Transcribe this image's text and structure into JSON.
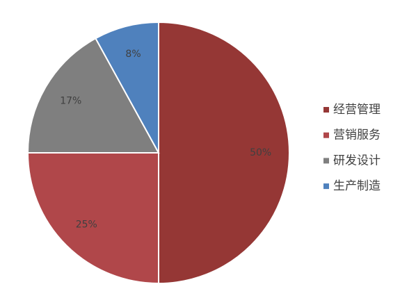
{
  "chart_data": {
    "type": "pie",
    "categories": [
      "经营管理",
      "营销服务",
      "研发设计",
      "生产制造"
    ],
    "values": [
      50,
      25,
      17,
      8
    ],
    "value_labels": [
      "50%",
      "25%",
      "17%",
      "8%"
    ],
    "colors": [
      "#953735",
      "#b0474a",
      "#7f7f7f",
      "#4f81bd"
    ],
    "legend": "right"
  }
}
